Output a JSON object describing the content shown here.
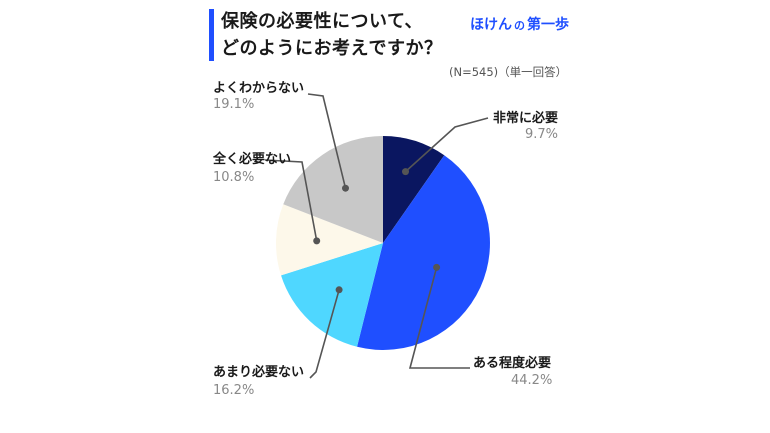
{
  "header": {
    "title_line1": "保険の必要性について、",
    "title_line2": "どのようにお考えですか？",
    "brand_a": "ほけん",
    "brand_b": "の",
    "brand_c": "第一歩"
  },
  "note": "(N=545)（単一回答）",
  "colors": {
    "accent": "#1f4fff",
    "very_necessary": "#0a1660",
    "somewhat_necessary": "#1f4fff",
    "rarely_necessary": "#4fd7ff",
    "not_necessary": "#fdf8ea",
    "unsure": "#c8c8c8"
  },
  "chart_data": {
    "type": "pie",
    "start": "12 o'clock, clockwise",
    "slices": [
      {
        "label": "非常に必要",
        "value": 9.7,
        "value_label": "9.7%",
        "color": "#0a1660"
      },
      {
        "label": "ある程度必要",
        "value": 44.2,
        "value_label": "44.2%",
        "color": "#1f4fff"
      },
      {
        "label": "あまり必要ない",
        "value": 16.2,
        "value_label": "16.2%",
        "color": "#4fd7ff"
      },
      {
        "label": "全く必要ない",
        "value": 10.8,
        "value_label": "10.8%",
        "color": "#fdf8ea"
      },
      {
        "label": "よくわからない",
        "value": 19.1,
        "value_label": "19.1%",
        "color": "#c8c8c8"
      }
    ]
  }
}
